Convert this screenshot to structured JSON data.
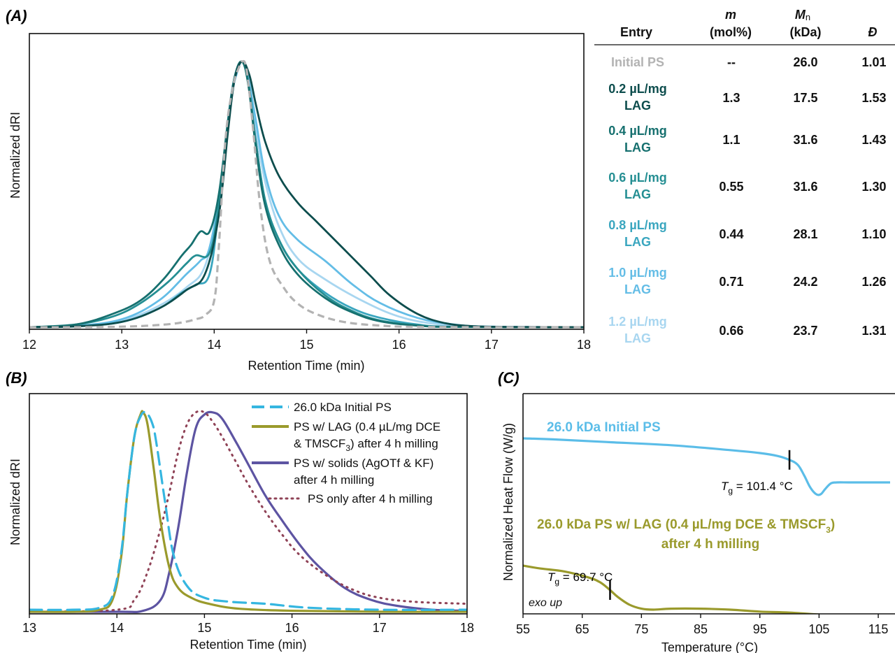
{
  "panels": {
    "a": "(A)",
    "b": "(B)",
    "c": "(C)"
  },
  "colors": {
    "initial": "#b3b3b3",
    "lag02": "#0d4d4d",
    "lag04": "#16706f",
    "lag06": "#258f93",
    "lag08": "#3aa6bf",
    "lag10": "#64bde6",
    "lag12": "#a8d6f0",
    "b_initial": "#35b6e0",
    "b_lag": "#9a9a2c",
    "b_solids": "#5d54a2",
    "b_psonly": "#8f4256",
    "c_initial": "#5bbde8",
    "c_lag": "#9a9a2c"
  },
  "table": {
    "headers": {
      "entry": "Entry",
      "m_sym": "m",
      "m_unit": "(mol%)",
      "mn_sym": "M",
      "mn_sub": "n",
      "mn_unit": "(kDa)",
      "d_sym": "Đ"
    },
    "rows": [
      {
        "entry1": "Initial PS",
        "entry2": "",
        "m": "--",
        "mn": "26.0",
        "d": "1.01"
      },
      {
        "entry1": "0.2 µL/mg",
        "entry2": "LAG",
        "m": "1.3",
        "mn": "17.5",
        "d": "1.53"
      },
      {
        "entry1": "0.4 µL/mg",
        "entry2": "LAG",
        "m": "1.1",
        "mn": "31.6",
        "d": "1.43"
      },
      {
        "entry1": "0.6 µL/mg",
        "entry2": "LAG",
        "m": "0.55",
        "mn": "31.6",
        "d": "1.30"
      },
      {
        "entry1": "0.8 µL/mg",
        "entry2": "LAG",
        "m": "0.44",
        "mn": "28.1",
        "d": "1.10"
      },
      {
        "entry1": "1.0 µL/mg",
        "entry2": "LAG",
        "m": "0.71",
        "mn": "24.2",
        "d": "1.26"
      },
      {
        "entry1": "1.2 µL/mg",
        "entry2": "LAG",
        "m": "0.66",
        "mn": "23.7",
        "d": "1.31"
      }
    ]
  },
  "chart_data": [
    {
      "id": "A",
      "type": "line",
      "xlabel": "Retention Time (min)",
      "ylabel": "Normalized dRI",
      "xlim": [
        12,
        18
      ],
      "ylim": [
        0,
        1
      ],
      "xticks": [
        "12",
        "13",
        "14",
        "15",
        "16",
        "17",
        "18"
      ],
      "series": [
        {
          "key": "lag12",
          "color_key": "lag12",
          "dash": false,
          "x": [
            12,
            12.5,
            13,
            13.4,
            13.7,
            13.9,
            14.05,
            14.15,
            14.22,
            14.3,
            14.38,
            14.45,
            14.55,
            14.7,
            14.9,
            15.2,
            15.6,
            16,
            16.4,
            16.8,
            17.2,
            18
          ],
          "y": [
            0,
            0.003,
            0.025,
            0.08,
            0.15,
            0.23,
            0.46,
            0.75,
            0.93,
            1,
            0.93,
            0.75,
            0.55,
            0.38,
            0.26,
            0.18,
            0.1,
            0.04,
            0.012,
            0.004,
            0.001,
            0
          ]
        },
        {
          "key": "lag10",
          "color_key": "lag10",
          "dash": false,
          "x": [
            12,
            12.5,
            13,
            13.4,
            13.7,
            13.85,
            13.95,
            14.08,
            14.18,
            14.24,
            14.3,
            14.36,
            14.45,
            14.55,
            14.7,
            14.9,
            15.2,
            15.5,
            15.8,
            16.2,
            16.6,
            17,
            18
          ],
          "y": [
            0,
            0.005,
            0.03,
            0.1,
            0.2,
            0.25,
            0.3,
            0.55,
            0.85,
            0.95,
            1,
            0.95,
            0.78,
            0.58,
            0.42,
            0.33,
            0.25,
            0.16,
            0.09,
            0.035,
            0.01,
            0.002,
            0
          ]
        },
        {
          "key": "lag08",
          "color_key": "lag08",
          "dash": false,
          "x": [
            12,
            12.5,
            13,
            13.4,
            13.65,
            13.8,
            13.95,
            14.05,
            14.15,
            14.22,
            14.3,
            14.37,
            14.45,
            14.55,
            14.7,
            14.9,
            15.2,
            15.5,
            15.8,
            16.2,
            16.6,
            18
          ],
          "y": [
            0,
            0.004,
            0.02,
            0.07,
            0.13,
            0.16,
            0.2,
            0.45,
            0.78,
            0.94,
            1,
            0.92,
            0.7,
            0.48,
            0.33,
            0.22,
            0.13,
            0.07,
            0.035,
            0.01,
            0.002,
            0
          ]
        },
        {
          "key": "lag06",
          "color_key": "lag06",
          "dash": false,
          "x": [
            12,
            12.5,
            12.9,
            13.2,
            13.5,
            13.7,
            13.8,
            13.95,
            14.05,
            14.15,
            14.22,
            14.3,
            14.37,
            14.45,
            14.55,
            14.7,
            14.9,
            15.2,
            15.5,
            15.8,
            16.2,
            16.6,
            18
          ],
          "y": [
            0,
            0.01,
            0.04,
            0.09,
            0.17,
            0.24,
            0.27,
            0.28,
            0.46,
            0.76,
            0.93,
            1,
            0.92,
            0.7,
            0.48,
            0.33,
            0.22,
            0.12,
            0.06,
            0.025,
            0.007,
            0.001,
            0
          ]
        },
        {
          "key": "lag04",
          "color_key": "lag04",
          "dash": false,
          "x": [
            12,
            12.5,
            12.9,
            13.2,
            13.45,
            13.65,
            13.75,
            13.85,
            13.95,
            14.05,
            14.15,
            14.22,
            14.3,
            14.37,
            14.45,
            14.55,
            14.7,
            14.9,
            15.2,
            15.5,
            15.8,
            16.2,
            16.6,
            18
          ],
          "y": [
            0,
            0.01,
            0.05,
            0.1,
            0.18,
            0.27,
            0.31,
            0.36,
            0.36,
            0.5,
            0.78,
            0.94,
            1,
            0.91,
            0.68,
            0.46,
            0.31,
            0.2,
            0.11,
            0.055,
            0.022,
            0.006,
            0.001,
            0
          ]
        },
        {
          "key": "lag02",
          "color_key": "lag02",
          "dash": false,
          "x": [
            12,
            12.5,
            13,
            13.4,
            13.7,
            13.9,
            14.05,
            14.15,
            14.22,
            14.3,
            14.38,
            14.45,
            14.55,
            14.7,
            14.9,
            15.1,
            15.3,
            15.5,
            15.7,
            15.9,
            16.2,
            16.5,
            16.8,
            17.2,
            18
          ],
          "y": [
            0,
            0.003,
            0.02,
            0.07,
            0.14,
            0.2,
            0.42,
            0.74,
            0.93,
            1,
            0.95,
            0.84,
            0.7,
            0.57,
            0.47,
            0.4,
            0.33,
            0.26,
            0.19,
            0.12,
            0.05,
            0.015,
            0.004,
            0.001,
            0
          ]
        },
        {
          "key": "initial",
          "color_key": "initial",
          "dash": true,
          "x": [
            12,
            12.5,
            13,
            13.3,
            13.6,
            13.8,
            13.9,
            14.0,
            14.05,
            14.12,
            14.2,
            14.27,
            14.3,
            14.35,
            14.42,
            14.5,
            14.6,
            14.75,
            14.9,
            15.1,
            15.4,
            15.8,
            16.3,
            18
          ],
          "y": [
            0,
            0,
            0.002,
            0.006,
            0.015,
            0.03,
            0.045,
            0.1,
            0.3,
            0.7,
            0.9,
            0.98,
            1,
            0.97,
            0.75,
            0.45,
            0.25,
            0.15,
            0.09,
            0.05,
            0.02,
            0.006,
            0.001,
            0
          ]
        }
      ]
    },
    {
      "id": "B",
      "type": "line",
      "xlabel": "Retention Time (min)",
      "ylabel": "Normalized dRI",
      "xlim": [
        13,
        18
      ],
      "ylim": [
        0,
        1
      ],
      "xticks": [
        "13",
        "14",
        "15",
        "16",
        "17",
        "18"
      ],
      "series": [
        {
          "key": "b_initial",
          "color_key": "b_initial",
          "style": "dash",
          "x": [
            13,
            13.5,
            13.8,
            13.95,
            14.05,
            14.12,
            14.2,
            14.27,
            14.33,
            14.4,
            14.45,
            14.55,
            14.65,
            14.8,
            15,
            15.3,
            15.7,
            16.2,
            17,
            18
          ],
          "y": [
            0.01,
            0.01,
            0.02,
            0.08,
            0.3,
            0.6,
            0.88,
            0.98,
            1,
            0.95,
            0.85,
            0.55,
            0.28,
            0.13,
            0.07,
            0.05,
            0.04,
            0.02,
            0.01,
            0.01
          ],
          "name": "26.0 kDa Initial PS"
        },
        {
          "key": "b_lag",
          "color_key": "b_lag",
          "style": "solid",
          "x": [
            13,
            13.5,
            13.8,
            13.95,
            14.05,
            14.12,
            14.2,
            14.27,
            14.3,
            14.35,
            14.42,
            14.5,
            14.6,
            14.7,
            14.85,
            15.05,
            15.4,
            16,
            17,
            18
          ],
          "y": [
            0,
            0,
            0.01,
            0.06,
            0.28,
            0.6,
            0.88,
            0.99,
            1,
            0.94,
            0.72,
            0.45,
            0.22,
            0.12,
            0.07,
            0.04,
            0.015,
            0.005,
            0,
            0
          ],
          "name": "PS w/ LAG (0.4 µL/mg DCE & TMSCF3) after 4 h milling"
        },
        {
          "key": "b_solids",
          "color_key": "b_solids",
          "style": "solid",
          "x": [
            13,
            14,
            14.3,
            14.5,
            14.6,
            14.7,
            14.8,
            14.9,
            15,
            15.1,
            15.2,
            15.35,
            15.5,
            15.7,
            15.9,
            16.1,
            16.3,
            16.6,
            16.9,
            17.2,
            17.6,
            18
          ],
          "y": [
            0,
            0,
            0.005,
            0.06,
            0.2,
            0.42,
            0.7,
            0.92,
            0.99,
            1,
            0.97,
            0.86,
            0.74,
            0.58,
            0.45,
            0.33,
            0.23,
            0.12,
            0.06,
            0.03,
            0.01,
            0.005
          ],
          "name": "PS w/ solids (AgOTf & KF) after 4 h milling"
        },
        {
          "key": "b_psonly",
          "color_key": "b_psonly",
          "style": "dot",
          "x": [
            13,
            14,
            14.2,
            14.35,
            14.5,
            14.6,
            14.7,
            14.8,
            14.9,
            15,
            15.1,
            15.2,
            15.35,
            15.5,
            15.7,
            15.9,
            16.1,
            16.4,
            16.7,
            17,
            17.4,
            18
          ],
          "y": [
            0,
            0.01,
            0.06,
            0.2,
            0.42,
            0.6,
            0.8,
            0.94,
            1,
            1,
            0.95,
            0.88,
            0.76,
            0.64,
            0.5,
            0.38,
            0.28,
            0.18,
            0.11,
            0.07,
            0.05,
            0.04
          ],
          "name": "PS only after 4 h milling"
        }
      ],
      "legend_position": "top-right"
    },
    {
      "id": "C",
      "type": "line",
      "xlabel": "Temperature (°C)",
      "ylabel": "Normalized Heat Flow (W/g)",
      "xlim": [
        55,
        117
      ],
      "xticks": [
        "55",
        "65",
        "75",
        "85",
        "95",
        "105",
        "115"
      ],
      "corner_note": "exo up",
      "series": [
        {
          "key": "c_initial",
          "color_key": "c_initial",
          "x": [
            55,
            60,
            70,
            80,
            90,
            95,
            98,
            100,
            101.4,
            102.5,
            103.5,
            104.5,
            105.3,
            106,
            107,
            108,
            110,
            113,
            117
          ],
          "y": [
            1.0,
            0.99,
            0.96,
            0.93,
            0.88,
            0.85,
            0.82,
            0.78,
            0.73,
            0.62,
            0.5,
            0.43,
            0.43,
            0.48,
            0.54,
            0.55,
            0.55,
            0.55,
            0.55
          ],
          "label": "26.0 kDa Initial PS",
          "tg_x": 100,
          "tg_label_T": "T",
          "tg_label_g": "g",
          "tg_label_rest": " = 101.4 °C"
        },
        {
          "key": "c_lag",
          "color_key": "c_lag",
          "x": [
            55,
            58,
            62,
            66,
            68,
            69.7,
            71,
            73,
            75,
            77,
            80,
            85,
            90,
            95,
            100,
            105,
            110,
            117
          ],
          "y": [
            -0.3,
            -0.33,
            -0.36,
            -0.42,
            -0.47,
            -0.55,
            -0.62,
            -0.7,
            -0.74,
            -0.75,
            -0.74,
            -0.74,
            -0.75,
            -0.77,
            -0.78,
            -0.8,
            -0.82,
            -0.85
          ],
          "label1": "26.0 kDa PS w/ LAG (0.4 µL/mg DCE & TMSCF",
          "label1_sub": "3",
          "label1_end": ")",
          "label2": "after 4 h milling",
          "tg_x": 69.7,
          "tg_label_T": "T",
          "tg_label_g": "g",
          "tg_label_rest": " = 69.7 °C"
        }
      ]
    }
  ],
  "legend_b": {
    "l1": "26.0 kDa Initial PS",
    "l2a": "PS w/ LAG (0.4 µL/mg DCE",
    "l2b": "& TMSCF",
    "l2b_sub": "3",
    "l2c": ") after 4 h milling",
    "l3a": "PS w/ solids (AgOTf & KF)",
    "l3b": "after 4 h milling",
    "l4": "PS only after 4 h milling"
  }
}
